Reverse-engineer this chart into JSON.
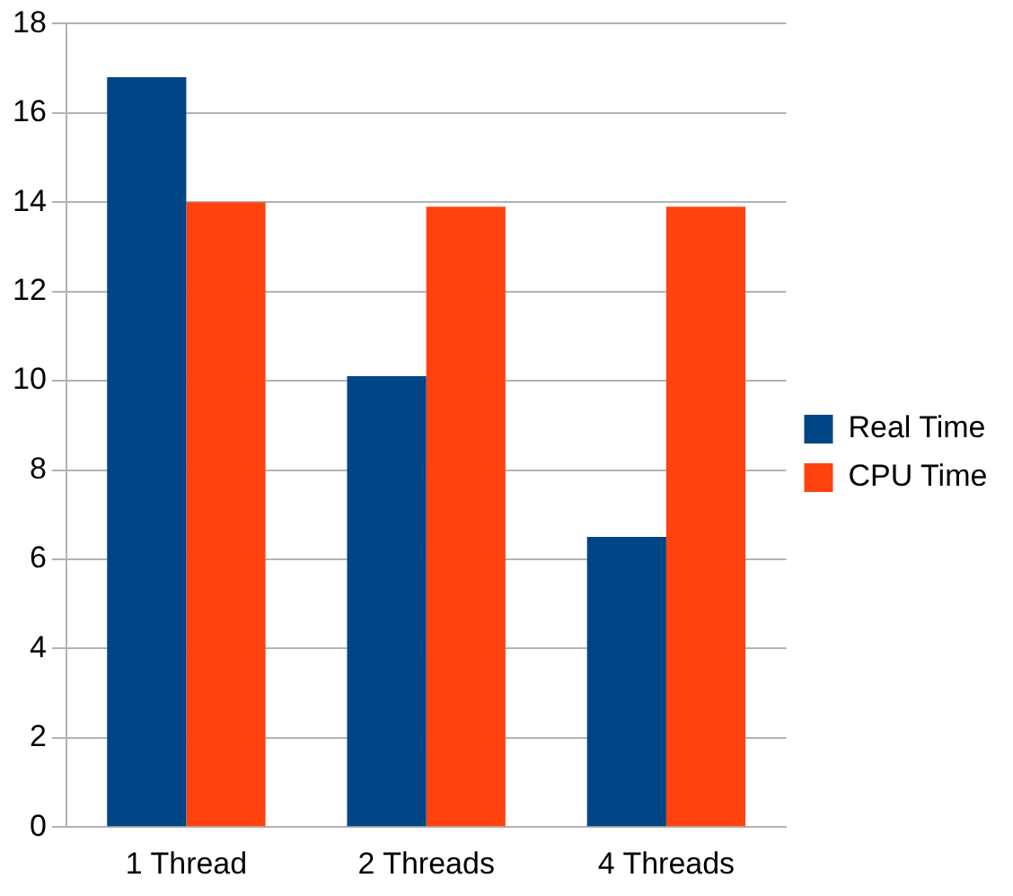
{
  "chart_data": {
    "type": "bar",
    "categories": [
      "1 Thread",
      "2 Threads",
      "4 Threads"
    ],
    "series": [
      {
        "name": "Real Time",
        "color": "#004586",
        "values": [
          16.8,
          10.1,
          6.5
        ]
      },
      {
        "name": "CPU Time",
        "color": "#ff420e",
        "values": [
          14.0,
          13.9,
          13.9
        ]
      }
    ],
    "ylim": [
      0,
      18
    ],
    "yticks": [
      0,
      2,
      4,
      6,
      8,
      10,
      12,
      14,
      16,
      18
    ],
    "grid": "y",
    "legend": "right"
  }
}
